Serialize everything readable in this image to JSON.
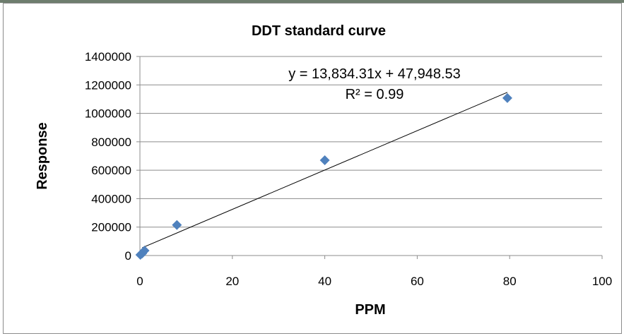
{
  "chart_data": {
    "type": "scatter",
    "title": "DDT standard curve",
    "xlabel": "PPM",
    "ylabel": "Response",
    "xlim": [
      0,
      100
    ],
    "ylim": [
      0,
      1400000
    ],
    "xticks": [
      "0",
      "20",
      "40",
      "60",
      "80",
      "100"
    ],
    "yticks": [
      "0",
      "200000",
      "400000",
      "600000",
      "800000",
      "1000000",
      "1200000",
      "1400000"
    ],
    "grid": "horizontal",
    "legend": "none",
    "marker_color": "#4f81bd",
    "series": [
      {
        "x": [
          0.1,
          0.5,
          1,
          8,
          40,
          79.5
        ],
        "y": [
          5000,
          15000,
          35000,
          215000,
          670000,
          1108000
        ]
      }
    ],
    "trendline": {
      "slope": 13834.31,
      "intercept": 47948.53,
      "x_range": [
        0.5,
        79.5
      ],
      "equation": "y = 13,834.31x + 47,948.53",
      "r2": "R² = 0.99"
    }
  }
}
